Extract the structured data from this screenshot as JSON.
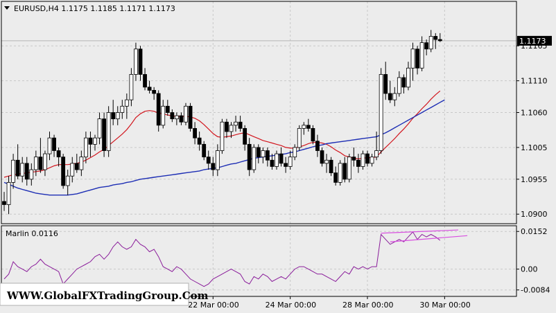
{
  "chart_data": [
    {
      "type": "candlestick",
      "symbol_header": "EURUSD,H4  1.1175 1.1185 1.1171 1.1173",
      "y_ticks": [
        "1.1165",
        "1.1110",
        "1.1060",
        "1.1005",
        "1.0955",
        "1.0900"
      ],
      "y_tick_values": [
        1.1165,
        1.111,
        1.106,
        1.1005,
        1.0955,
        1.09
      ],
      "ylim": [
        1.0885,
        1.1235
      ],
      "current_price_label": "1.1173",
      "current_price": 1.1173,
      "x_ticks": [
        "22 Mar 00:00",
        "24 Mar 00:00",
        "28 Mar 00:00",
        "30 Mar 00:00"
      ],
      "x_tick_bar_index": [
        46,
        63,
        80,
        97
      ],
      "candles": [
        [
          1.092,
          1.0935,
          1.0905,
          1.0915
        ],
        [
          1.0915,
          1.096,
          1.09,
          1.095
        ],
        [
          1.095,
          1.0995,
          1.094,
          1.0985
        ],
        [
          1.0985,
          1.101,
          1.0955,
          1.096
        ],
        [
          1.096,
          1.099,
          1.095,
          1.098
        ],
        [
          1.098,
          1.099,
          1.0945,
          1.0955
        ],
        [
          1.0955,
          1.098,
          1.0945,
          1.097
        ],
        [
          1.097,
          1.1,
          1.096,
          1.099
        ],
        [
          1.099,
          1.102,
          1.0965,
          1.097
        ],
        [
          1.097,
          1.1,
          1.096,
          1.0995
        ],
        [
          1.0995,
          1.103,
          1.0985,
          1.102
        ],
        [
          1.102,
          1.1025,
          1.099,
          1.1
        ],
        [
          1.1,
          1.1005,
          1.0975,
          1.099
        ],
        [
          1.099,
          1.0995,
          1.094,
          1.0945
        ],
        [
          1.0945,
          1.097,
          1.093,
          1.096
        ],
        [
          1.096,
          1.099,
          1.095,
          1.098
        ],
        [
          1.098,
          1.0995,
          1.0965,
          1.097
        ],
        [
          1.097,
          1.1,
          1.096,
          1.099
        ],
        [
          1.099,
          1.103,
          1.098,
          1.102
        ],
        [
          1.102,
          1.103,
          1.099,
          1.101
        ],
        [
          1.101,
          1.1025,
          1.1,
          1.102
        ],
        [
          1.102,
          1.106,
          1.101,
          1.105
        ],
        [
          1.105,
          1.106,
          1.099,
          1.1
        ],
        [
          1.1,
          1.107,
          1.099,
          1.106
        ],
        [
          1.106,
          1.108,
          1.104,
          1.105
        ],
        [
          1.105,
          1.107,
          1.104,
          1.106
        ],
        [
          1.106,
          1.108,
          1.105,
          1.107
        ],
        [
          1.107,
          1.109,
          1.105,
          1.108
        ],
        [
          1.108,
          1.113,
          1.107,
          1.112
        ],
        [
          1.112,
          1.117,
          1.111,
          1.116
        ],
        [
          1.116,
          1.1165,
          1.111,
          1.112
        ],
        [
          1.112,
          1.113,
          1.1095,
          1.11
        ],
        [
          1.11,
          1.111,
          1.109,
          1.1095
        ],
        [
          1.1095,
          1.11,
          1.108,
          1.109
        ],
        [
          1.109,
          1.1095,
          1.103,
          1.104
        ],
        [
          1.104,
          1.108,
          1.1035,
          1.107
        ],
        [
          1.107,
          1.108,
          1.1055,
          1.106
        ],
        [
          1.106,
          1.1065,
          1.1045,
          1.105
        ],
        [
          1.105,
          1.106,
          1.104,
          1.1055
        ],
        [
          1.1055,
          1.106,
          1.104,
          1.1045
        ],
        [
          1.1045,
          1.1075,
          1.104,
          1.107
        ],
        [
          1.107,
          1.1075,
          1.103,
          1.1035
        ],
        [
          1.1035,
          1.1045,
          1.101,
          1.102
        ],
        [
          1.102,
          1.103,
          1.1,
          1.101
        ],
        [
          1.101,
          1.1015,
          1.0985,
          1.099
        ],
        [
          1.099,
          1.1,
          1.097,
          1.098
        ],
        [
          1.098,
          1.099,
          1.096,
          1.097
        ],
        [
          1.097,
          1.101,
          1.096,
          1.1
        ],
        [
          1.1,
          1.105,
          1.0995,
          1.1045
        ],
        [
          1.1045,
          1.105,
          1.102,
          1.103
        ],
        [
          1.103,
          1.1045,
          1.102,
          1.104
        ],
        [
          1.104,
          1.1055,
          1.103,
          1.1045
        ],
        [
          1.1045,
          1.1055,
          1.103,
          1.1035
        ],
        [
          1.1035,
          1.104,
          1.1,
          1.101
        ],
        [
          1.101,
          1.102,
          1.096,
          1.097
        ],
        [
          1.097,
          1.101,
          1.0965,
          1.1005
        ],
        [
          1.1005,
          1.101,
          1.098,
          1.099
        ],
        [
          1.099,
          1.1005,
          1.098,
          1.1
        ],
        [
          1.1,
          1.1005,
          1.0975,
          1.0985
        ],
        [
          1.0985,
          1.0995,
          1.097,
          1.0975
        ],
        [
          1.0975,
          1.1,
          1.097,
          1.0995
        ],
        [
          1.0995,
          1.1005,
          1.0975,
          1.098
        ],
        [
          1.098,
          1.099,
          1.0965,
          1.0975
        ],
        [
          1.0975,
          1.1,
          1.097,
          1.099
        ],
        [
          1.099,
          1.101,
          1.0985,
          1.1005
        ],
        [
          1.1005,
          1.104,
          1.1,
          1.1035
        ],
        [
          1.1035,
          1.1045,
          1.1025,
          1.104
        ],
        [
          1.104,
          1.105,
          1.103,
          1.1035
        ],
        [
          1.1035,
          1.104,
          1.101,
          1.1015
        ],
        [
          1.1015,
          1.1025,
          1.099,
          1.1
        ],
        [
          1.1,
          1.1005,
          1.0975,
          1.098
        ],
        [
          1.098,
          1.0995,
          1.0965,
          1.0985
        ],
        [
          1.0985,
          1.099,
          1.096,
          1.0965
        ],
        [
          1.0965,
          1.0975,
          1.0945,
          1.095
        ],
        [
          1.095,
          1.0985,
          1.0945,
          1.098
        ],
        [
          1.098,
          1.099,
          1.095,
          1.0955
        ],
        [
          1.0955,
          1.0995,
          1.095,
          1.099
        ],
        [
          1.099,
          1.1005,
          1.0975,
          1.0985
        ],
        [
          1.0985,
          1.0995,
          1.0965,
          1.0975
        ],
        [
          1.0975,
          1.1,
          1.097,
          1.0995
        ],
        [
          1.0995,
          1.1,
          1.0975,
          1.098
        ],
        [
          1.098,
          1.0995,
          1.0975,
          1.099
        ],
        [
          1.099,
          1.103,
          1.0985,
          1.1
        ],
        [
          1.1,
          1.113,
          1.0995,
          1.112
        ],
        [
          1.112,
          1.114,
          1.108,
          1.109
        ],
        [
          1.109,
          1.111,
          1.1075,
          1.108
        ],
        [
          1.108,
          1.11,
          1.107,
          1.109
        ],
        [
          1.109,
          1.1125,
          1.1085,
          1.1115
        ],
        [
          1.1115,
          1.112,
          1.109,
          1.11
        ],
        [
          1.11,
          1.114,
          1.1095,
          1.113
        ],
        [
          1.113,
          1.117,
          1.111,
          1.116
        ],
        [
          1.116,
          1.1165,
          1.112,
          1.113
        ],
        [
          1.113,
          1.118,
          1.1125,
          1.117
        ],
        [
          1.117,
          1.1175,
          1.115,
          1.116
        ],
        [
          1.116,
          1.119,
          1.1155,
          1.118
        ],
        [
          1.118,
          1.1185,
          1.116,
          1.1175
        ],
        [
          1.1175,
          1.1185,
          1.1171,
          1.1173
        ]
      ],
      "ma_red": [
        1.0958,
        1.096,
        1.0962,
        1.0963,
        1.0964,
        1.0965,
        1.0966,
        1.0967,
        1.0968,
        1.097,
        1.0973,
        1.0976,
        1.0978,
        1.0978,
        1.0978,
        1.0979,
        1.098,
        1.0982,
        1.0985,
        1.0989,
        1.0993,
        1.0998,
        1.1002,
        1.1008,
        1.1014,
        1.102,
        1.1026,
        1.1033,
        1.1042,
        1.1052,
        1.1058,
        1.1062,
        1.1063,
        1.1062,
        1.1059,
        1.1058,
        1.1056,
        1.1055,
        1.1054,
        1.1054,
        1.1054,
        1.1053,
        1.1051,
        1.1047,
        1.1041,
        1.1034,
        1.1027,
        1.1022,
        1.1021,
        1.1022,
        1.1023,
        1.1025,
        1.1027,
        1.1028,
        1.1025,
        1.1022,
        1.1019,
        1.1016,
        1.1014,
        1.1012,
        1.101,
        1.1008,
        1.1005,
        1.1004,
        1.1004,
        1.1006,
        1.1008,
        1.1011,
        1.1013,
        1.1013,
        1.1012,
        1.101,
        1.1006,
        1.1001,
        1.0997,
        1.0992,
        1.099,
        1.0988,
        1.0987,
        1.0988,
        1.0989,
        1.0989,
        1.099,
        1.0998,
        1.1005,
        1.1012,
        1.1019,
        1.1027,
        1.1034,
        1.1042,
        1.1051,
        1.1058,
        1.1066,
        1.1073,
        1.1081,
        1.1088,
        1.1094
      ],
      "ma_blue": [
        1.095,
        1.0947,
        1.0944,
        1.0941,
        1.0939,
        1.0937,
        1.0935,
        1.0933,
        1.0932,
        1.0931,
        1.093,
        1.093,
        1.093,
        1.093,
        1.093,
        1.0931,
        1.0932,
        1.0934,
        1.0936,
        1.0938,
        1.094,
        1.0942,
        1.0943,
        1.0944,
        1.0946,
        1.0947,
        1.0948,
        1.095,
        1.0951,
        1.0953,
        1.0955,
        1.0956,
        1.0957,
        1.0958,
        1.0959,
        1.096,
        1.0961,
        1.0962,
        1.0963,
        1.0964,
        1.0965,
        1.0966,
        1.0967,
        1.0968,
        1.097,
        1.0971,
        1.0972,
        1.0973,
        1.0975,
        1.0977,
        1.0979,
        1.098,
        1.0982,
        1.0984,
        1.0986,
        1.0988,
        1.0989,
        1.099,
        1.0991,
        1.0992,
        1.0993,
        1.0994,
        1.0995,
        1.0997,
        1.0998,
        1.1,
        1.1002,
        1.1004,
        1.1006,
        1.1008,
        1.1009,
        1.1011,
        1.1012,
        1.1013,
        1.1014,
        1.1015,
        1.1016,
        1.1017,
        1.1018,
        1.1019,
        1.102,
        1.1021,
        1.1022,
        1.1025,
        1.1028,
        1.1032,
        1.1036,
        1.104,
        1.1044,
        1.1048,
        1.1052,
        1.1056,
        1.106,
        1.1064,
        1.1068,
        1.1072,
        1.1076,
        1.108
      ]
    },
    {
      "type": "line",
      "indicator_label": "Marlin 0.0116",
      "y_ticks": [
        "0.0152",
        "0.00",
        "-0.0084"
      ],
      "y_tick_values": [
        0.0152,
        0.0,
        -0.0084
      ],
      "ylim": [
        -0.011,
        0.0175
      ],
      "values": [
        -0.004,
        -0.002,
        0.003,
        0.001,
        0.0,
        -0.001,
        0.001,
        0.002,
        0.004,
        0.002,
        0.001,
        0.0,
        -0.001,
        -0.006,
        -0.004,
        -0.002,
        0.0,
        0.001,
        0.002,
        0.003,
        0.005,
        0.006,
        0.004,
        0.006,
        0.009,
        0.011,
        0.009,
        0.008,
        0.009,
        0.012,
        0.01,
        0.009,
        0.007,
        0.008,
        0.005,
        0.001,
        0.0,
        -0.001,
        0.001,
        0.0,
        -0.002,
        -0.004,
        -0.005,
        -0.006,
        -0.007,
        -0.006,
        -0.004,
        -0.003,
        -0.002,
        -0.001,
        0.0,
        -0.001,
        -0.002,
        -0.005,
        -0.006,
        -0.003,
        -0.004,
        -0.002,
        -0.003,
        -0.005,
        -0.004,
        -0.003,
        -0.004,
        -0.002,
        0.0,
        0.001,
        0.001,
        0.0,
        -0.001,
        -0.002,
        -0.002,
        -0.003,
        -0.004,
        -0.005,
        -0.003,
        -0.001,
        -0.002,
        0.001,
        0.0,
        0.001,
        0.0,
        0.001,
        0.001,
        0.014,
        0.012,
        0.01,
        0.011,
        0.012,
        0.011,
        0.013,
        0.015,
        0.012,
        0.014,
        0.013,
        0.014,
        0.013,
        0.0116
      ],
      "trendline_upper": [
        [
          83,
          0.0145
        ],
        [
          100,
          0.0158
        ]
      ],
      "trendline_lower": [
        [
          85,
          0.011
        ],
        [
          102,
          0.0135
        ]
      ]
    }
  ],
  "watermark": "WWW.GlobalFXTradingGroup.Com",
  "colors": {
    "background": "#ececec",
    "grid": "#c8c8c8",
    "ma_red": "#d2161e",
    "ma_blue": "#1c2db4",
    "indicator": "#8a1c9a",
    "trend": "#d84ee0"
  }
}
